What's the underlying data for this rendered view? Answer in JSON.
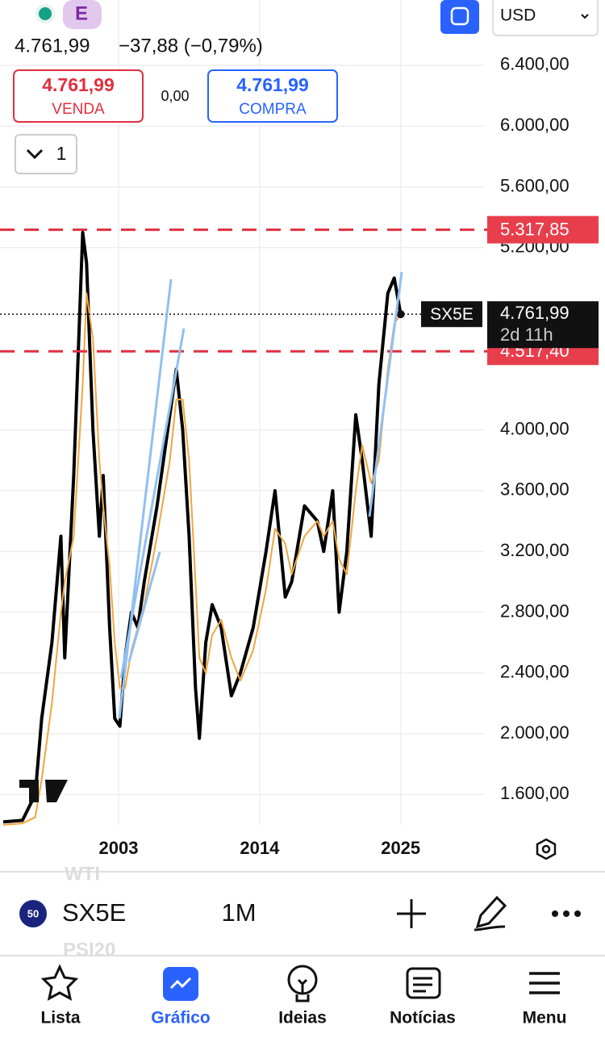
{
  "header": {
    "badge": "E",
    "price": "4.761,99",
    "change": "−37,88 (−0,79%)",
    "sell_price": "4.761,99",
    "sell_label": "VENDA",
    "spread": "0,00",
    "buy_price": "4.761,99",
    "buy_label": "COMPRA",
    "layout_count": "1",
    "currency": "USD"
  },
  "chart_data": {
    "type": "line",
    "xlim": [
      1993.75,
      2031.5
    ],
    "ylim": [
      1400,
      6830
    ],
    "xticks": [
      2003,
      2014,
      2025
    ],
    "yticks": [
      {
        "value": 6400,
        "label": "6.400,00"
      },
      {
        "value": 6000,
        "label": "6.000,00"
      },
      {
        "value": 5600,
        "label": "5.600,00"
      },
      {
        "value": 5200,
        "label": "5.200,00"
      },
      {
        "value": 4000,
        "label": "4.000,00"
      },
      {
        "value": 3600,
        "label": "3.600,00"
      },
      {
        "value": 3200,
        "label": "3.200,00"
      },
      {
        "value": 2800,
        "label": "2.800,00"
      },
      {
        "value": 2400,
        "label": "2.400,00"
      },
      {
        "value": 2000,
        "label": "2.000,00"
      },
      {
        "value": 1600,
        "label": "1.600,00"
      }
    ],
    "grid": true,
    "x": [
      1994,
      1995.5,
      1996.5,
      1997,
      1997.8,
      1998.5,
      1998.8,
      1999.5,
      2000.2,
      2000.5,
      2001,
      2001.5,
      2001.8,
      2002.3,
      2002.7,
      2003.1,
      2003.5,
      2004,
      2004.5,
      2005,
      2006,
      2007,
      2007.5,
      2008,
      2008.5,
      2009,
      2009.3,
      2009.8,
      2010.3,
      2011,
      2011.8,
      2012.5,
      2013.5,
      2014.5,
      2015.2,
      2016,
      2016.5,
      2017.5,
      2018.5,
      2019,
      2019.7,
      2020.2,
      2020.8,
      2021.5,
      2022,
      2022.7,
      2023.3,
      2024,
      2024.5,
      2025
    ],
    "series": [
      {
        "color": "#000000",
        "values": [
          1420,
          1430,
          1600,
          2100,
          2600,
          3300,
          2500,
          3700,
          5300,
          5100,
          4000,
          3300,
          3700,
          2700,
          2100,
          2050,
          2500,
          2800,
          2700,
          3000,
          3500,
          4100,
          4400,
          4000,
          3300,
          2300,
          1970,
          2600,
          2850,
          2700,
          2250,
          2400,
          2700,
          3200,
          3600,
          2900,
          3000,
          3500,
          3400,
          3200,
          3600,
          2800,
          3200,
          4100,
          3800,
          3300,
          4300,
          4900,
          5000,
          4761.99
        ]
      },
      {
        "color": "#f0a640",
        "values": [
          1400,
          1410,
          1450,
          1700,
          2200,
          2800,
          3000,
          3300,
          4300,
          4900,
          4600,
          3800,
          3500,
          3100,
          2600,
          2300,
          2300,
          2550,
          2700,
          2850,
          3300,
          3800,
          4200,
          4200,
          3800,
          3000,
          2500,
          2400,
          2650,
          2750,
          2500,
          2350,
          2550,
          2950,
          3350,
          3250,
          3050,
          3300,
          3400,
          3300,
          3400,
          3150,
          3050,
          3600,
          3900,
          3650,
          3800,
          4400,
          4700,
          4761.99
        ]
      }
    ],
    "levels": [
      {
        "value": 5317.85,
        "label": "5.317,85"
      },
      {
        "value": 4517.4,
        "label": "4.517,40"
      }
    ],
    "last": {
      "value": 4761.99,
      "label": "4.761,99",
      "symbol": "SX5E",
      "countdown": "2d 11h"
    }
  },
  "toolbar": {
    "badge": "50",
    "symbol": "SX5E",
    "interval": "1M",
    "behind_top": "WTI",
    "behind_bottom": "PSI20"
  },
  "nav": [
    "Lista",
    "Gráfico",
    "Ideias",
    "Notícias",
    "Menu"
  ]
}
